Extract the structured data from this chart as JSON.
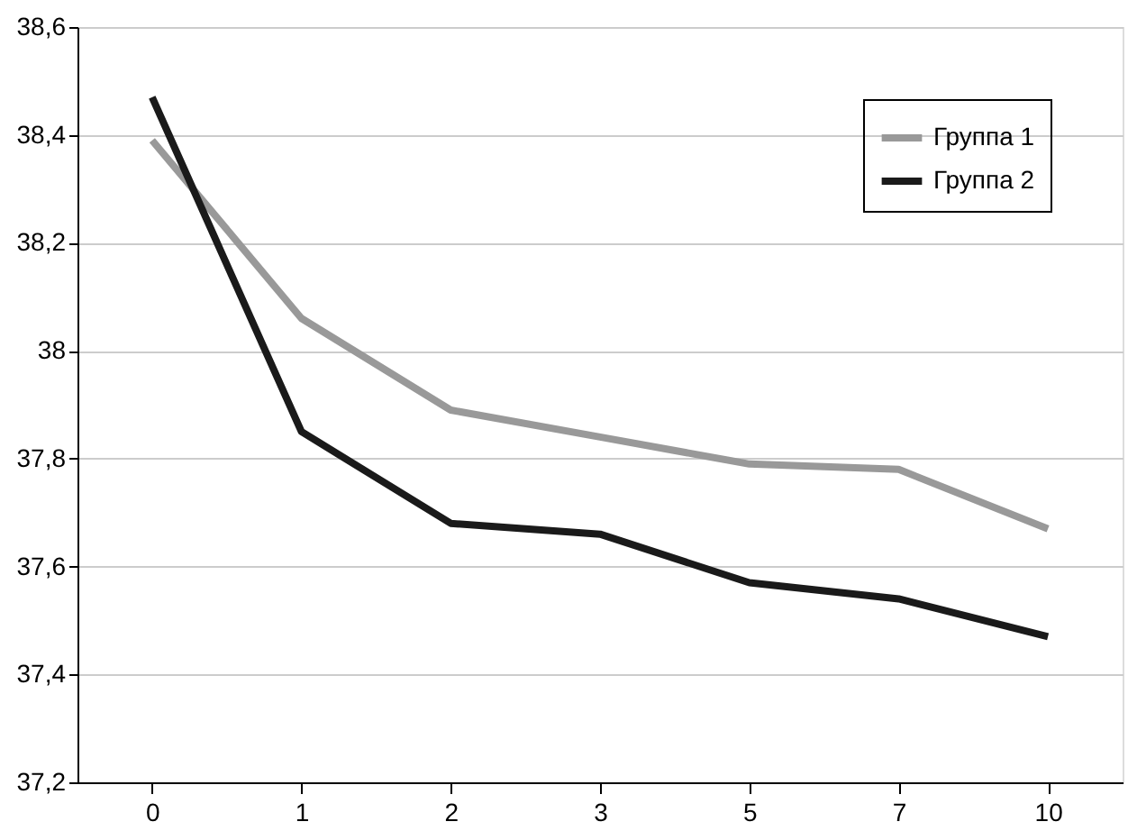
{
  "chart_data": {
    "type": "line",
    "categories": [
      "0",
      "1",
      "2",
      "3",
      "5",
      "7",
      "10"
    ],
    "series": [
      {
        "name": "Группа 1",
        "color": "#999999",
        "values": [
          38.39,
          38.06,
          37.89,
          37.84,
          37.79,
          37.78,
          37.67
        ]
      },
      {
        "name": "Группа 2",
        "color": "#1a1a1a",
        "values": [
          38.47,
          37.85,
          37.68,
          37.66,
          37.57,
          37.54,
          37.47
        ]
      }
    ],
    "ylim": [
      37.2,
      38.6
    ],
    "yticks": [
      {
        "value": 37.2,
        "label": "37,2"
      },
      {
        "value": 37.4,
        "label": "37,4"
      },
      {
        "value": 37.6,
        "label": "37,6"
      },
      {
        "value": 37.8,
        "label": "37,8"
      },
      38,
      {
        "value": 38.2,
        "label": "38,2"
      },
      {
        "value": 38.4,
        "label": "38,4"
      },
      {
        "value": 38.6,
        "label": "38,6"
      }
    ],
    "grid": "y",
    "legend": "top right",
    "marker": "none",
    "line_style": "solid"
  }
}
